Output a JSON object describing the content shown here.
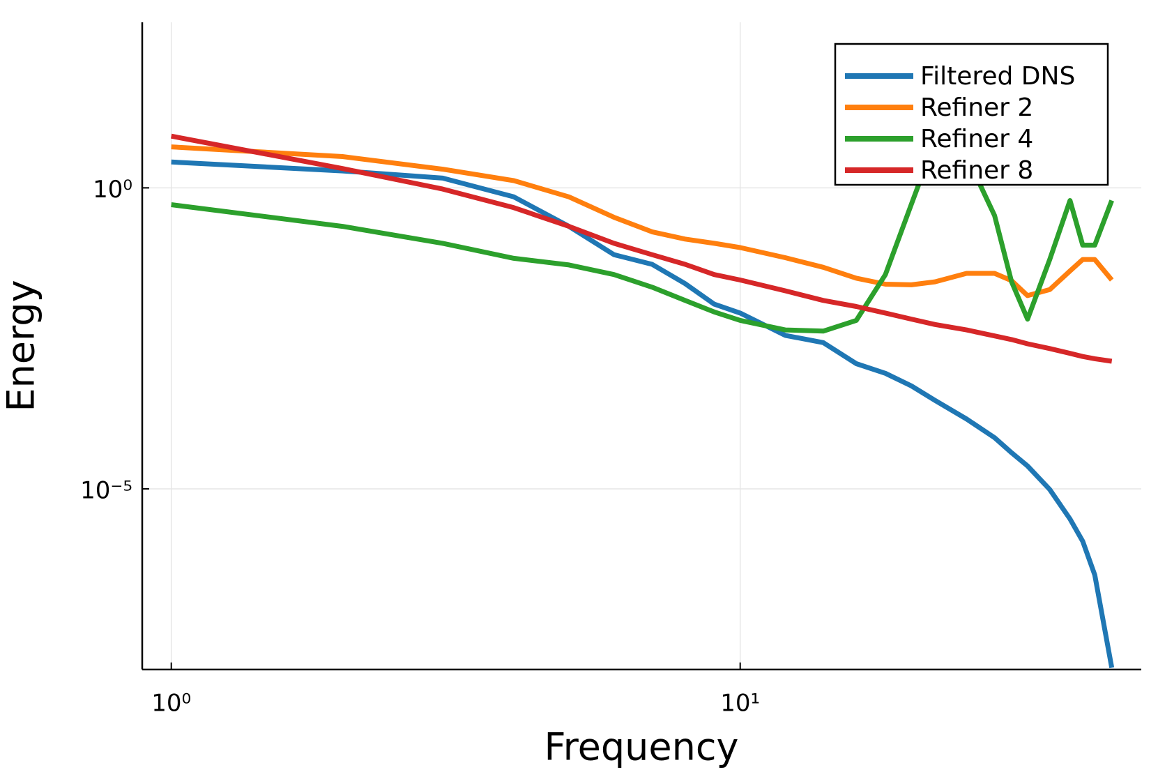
{
  "chart_data": {
    "type": "line",
    "xlabel": "Frequency",
    "ylabel": "Energy",
    "xscale": "log",
    "yscale": "log",
    "grid": true,
    "legend": "upper right",
    "xlim": [
      0.889,
      50.7
    ],
    "ylim": [
      1e-08,
      562
    ],
    "xticks": [
      {
        "value": 1,
        "label": "10⁰"
      },
      {
        "value": 10,
        "label": "10¹"
      }
    ],
    "yticks": [
      {
        "value": 1e-05,
        "label": "10⁻⁵"
      },
      {
        "value": 1,
        "label": "10⁰"
      }
    ],
    "x": [
      1,
      2,
      3,
      4,
      5,
      6,
      7,
      8,
      9,
      10,
      12,
      14,
      16,
      18,
      20,
      22,
      25,
      28,
      30,
      32,
      35,
      38,
      40,
      42,
      45
    ],
    "series": [
      {
        "name": "Filtered DNS",
        "color": "#1f77b4",
        "values": [
          2.69,
          1.91,
          1.45,
          0.708,
          0.229,
          0.0776,
          0.0537,
          0.0257,
          0.0117,
          0.00832,
          0.00355,
          0.00269,
          0.0012,
          0.000832,
          0.000513,
          0.000295,
          0.000145,
          7.08e-05,
          3.98e-05,
          2.4e-05,
          9.77e-06,
          3.16e-06,
          1.35e-06,
          3.72e-07,
          1.07e-08
        ]
      },
      {
        "name": "Refiner 2",
        "color": "#ff7f0e",
        "values": [
          4.79,
          3.31,
          2.04,
          1.32,
          0.708,
          0.324,
          0.186,
          0.141,
          0.12,
          0.102,
          0.0692,
          0.0479,
          0.0316,
          0.0251,
          0.0245,
          0.0275,
          0.038,
          0.038,
          0.0288,
          0.0162,
          0.0204,
          0.0417,
          0.0646,
          0.0646,
          0.0295
        ]
      },
      {
        "name": "Refiner 4",
        "color": "#2ca02c",
        "values": [
          0.525,
          0.229,
          0.12,
          0.0676,
          0.0525,
          0.0363,
          0.0224,
          0.0135,
          0.0087,
          0.0063,
          0.00437,
          0.00417,
          0.0063,
          0.0363,
          0.537,
          6.03,
          3.39,
          0.347,
          0.0275,
          0.0066,
          0.0646,
          0.617,
          0.112,
          0.112,
          0.617
        ]
      },
      {
        "name": "Refiner 8",
        "color": "#d62728",
        "values": [
          7.24,
          2.09,
          0.955,
          0.468,
          0.229,
          0.12,
          0.0776,
          0.0537,
          0.0363,
          0.0295,
          0.0195,
          0.0135,
          0.0107,
          0.00832,
          0.0066,
          0.00537,
          0.00437,
          0.00347,
          0.00302,
          0.00257,
          0.00214,
          0.00178,
          0.00158,
          0.00145,
          0.00132
        ]
      }
    ]
  }
}
